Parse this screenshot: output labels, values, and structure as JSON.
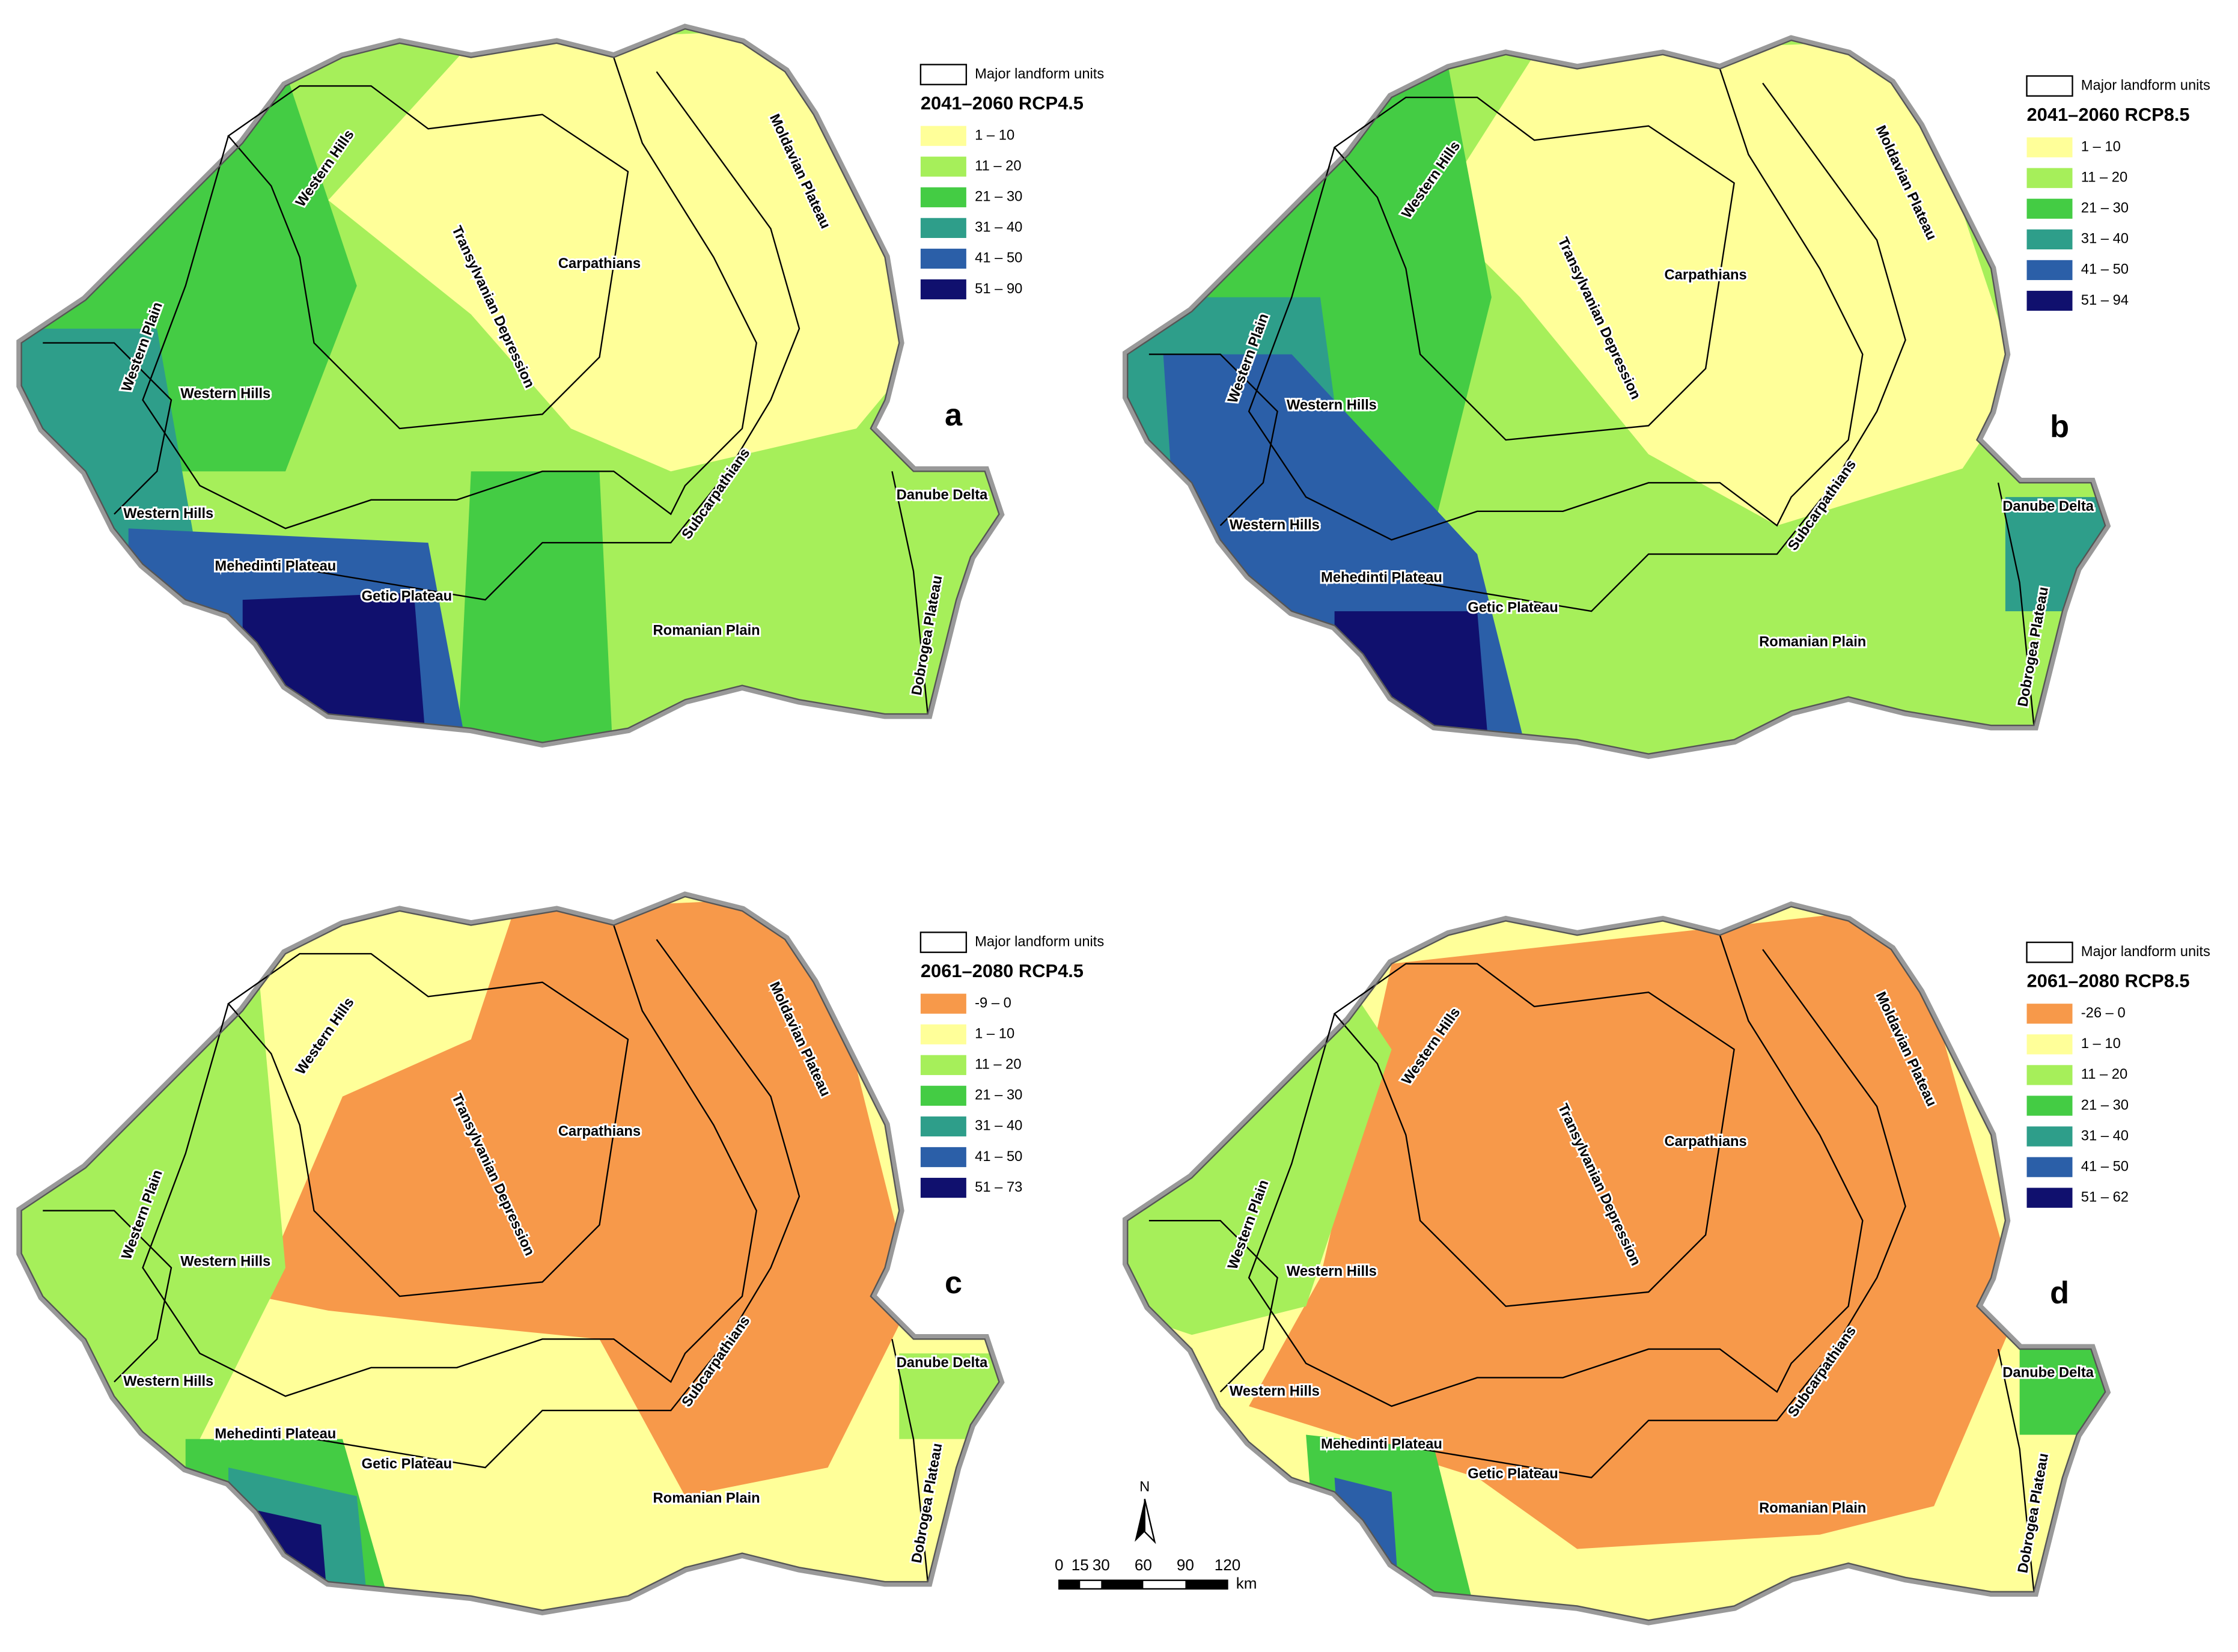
{
  "panels": [
    {
      "letter": "a",
      "legend": {
        "boundary_label": "Major landform units",
        "title": "2041–2060 RCP4.5",
        "classes": [
          {
            "label": "1 – 10",
            "color": "#ffff99"
          },
          {
            "label": "11 – 20",
            "color": "#a6ef5a"
          },
          {
            "label": "21 – 30",
            "color": "#44cc44"
          },
          {
            "label": "31 – 40",
            "color": "#2e9e8a"
          },
          {
            "label": "41 – 50",
            "color": "#2b5fa8"
          },
          {
            "label": "51 – 90",
            "color": "#10106e"
          }
        ]
      }
    },
    {
      "letter": "b",
      "legend": {
        "boundary_label": "Major landform units",
        "title": "2041–2060 RCP8.5",
        "classes": [
          {
            "label": "1 – 10",
            "color": "#ffff99"
          },
          {
            "label": "11 – 20",
            "color": "#a6ef5a"
          },
          {
            "label": "21 – 30",
            "color": "#44cc44"
          },
          {
            "label": "31 – 40",
            "color": "#2e9e8a"
          },
          {
            "label": "41 – 50",
            "color": "#2b5fa8"
          },
          {
            "label": "51 – 94",
            "color": "#10106e"
          }
        ]
      }
    },
    {
      "letter": "c",
      "legend": {
        "boundary_label": "Major landform units",
        "title": "2061–2080 RCP4.5",
        "classes": [
          {
            "label": "-9 – 0",
            "color": "#f7994a"
          },
          {
            "label": "1 – 10",
            "color": "#ffff99"
          },
          {
            "label": "11 – 20",
            "color": "#a6ef5a"
          },
          {
            "label": "21 – 30",
            "color": "#44cc44"
          },
          {
            "label": "31 – 40",
            "color": "#2e9e8a"
          },
          {
            "label": "41 – 50",
            "color": "#2b5fa8"
          },
          {
            "label": "51 – 73",
            "color": "#10106e"
          }
        ]
      }
    },
    {
      "letter": "d",
      "legend": {
        "boundary_label": "Major landform units",
        "title": "2061–2080 RCP8.5",
        "classes": [
          {
            "label": "-26 – 0",
            "color": "#f7994a"
          },
          {
            "label": "1 – 10",
            "color": "#ffff99"
          },
          {
            "label": "11 – 20",
            "color": "#a6ef5a"
          },
          {
            "label": "21 – 30",
            "color": "#44cc44"
          },
          {
            "label": "31 – 40",
            "color": "#2e9e8a"
          },
          {
            "label": "41 – 50",
            "color": "#2b5fa8"
          },
          {
            "label": "51 – 62",
            "color": "#10106e"
          }
        ]
      }
    }
  ],
  "landform_labels": [
    "Western Hills",
    "Transylvanian Depression",
    "Carpathians",
    "Moldavian Plateau",
    "Western Plain",
    "Western Hills",
    "Western Hills",
    "Subcarpathians",
    "Danube Delta",
    "Mehedinti Plateau",
    "Getic Plateau",
    "Romanian Plain",
    "Dobrogea Plateau"
  ],
  "north": "N",
  "scale_bar": {
    "labels": [
      "0",
      "15",
      "30",
      "60",
      "90",
      "120"
    ],
    "unit": "km"
  }
}
